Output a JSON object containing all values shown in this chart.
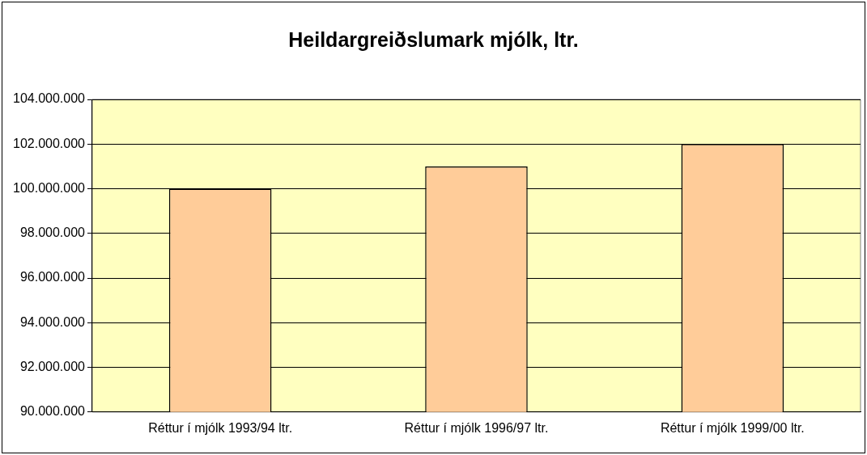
{
  "chart_data": {
    "type": "bar",
    "title": "Heildargreiðslumark mjólk, ltr.",
    "categories": [
      "Réttur í mjólk 1993/94 ltr.",
      "Réttur í mjólk 1996/97 ltr.",
      "Réttur í mjólk 1999/00 ltr."
    ],
    "values": [
      100000000,
      101000000,
      102000000
    ],
    "color": "#ffcc99",
    "ylim": [
      90000000,
      104000000
    ],
    "yticks": [
      {
        "value": 90000000,
        "label": "90.000.000"
      },
      {
        "value": 92000000,
        "label": "92.000.000"
      },
      {
        "value": 94000000,
        "label": "94.000.000"
      },
      {
        "value": 96000000,
        "label": "96.000.000"
      },
      {
        "value": 98000000,
        "label": "98.000.000"
      },
      {
        "value": 100000000,
        "label": "100.000.000"
      },
      {
        "value": 102000000,
        "label": "102.000.000"
      },
      {
        "value": 104000000,
        "label": "104.000.000"
      }
    ],
    "grid": "y",
    "legend": false
  }
}
